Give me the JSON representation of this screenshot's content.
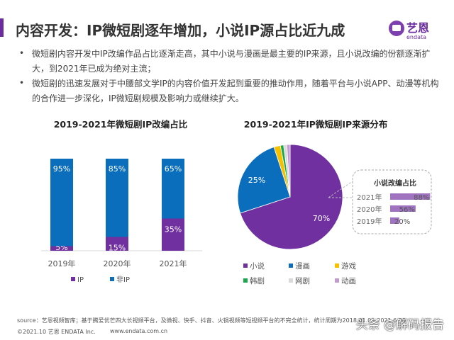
{
  "header": {
    "title": "内容开发：IP微短剧逐年增加，小说IP源占比近九成",
    "logo_text": "艺恩 endata",
    "accent_color": "#6a2c9f"
  },
  "bullets": [
    "微短剧内容开发中IP改编作品占比逐渐走高，其中小说与漫画是最主要的IP来源，且小说改编的份额逐渐扩大，到2021年已成为绝对主流；",
    "微短剧的迅速发展对于中腰部文学IP的内容价值开发起到重要的推动作用，随着平台与小说APP、动漫等机构的合作进一步深化，IP微短剧规模及影响力或继续扩大。"
  ],
  "bullet_mark": "•",
  "chart_data": [
    {
      "type": "bar",
      "stacked": true,
      "title": "2019-2021年微短剧IP改编占比",
      "categories": [
        "2019年",
        "2020年",
        "2021年"
      ],
      "series": [
        {
          "name": "IP",
          "values": [
            5,
            15,
            35
          ],
          "labels": [
            "5%",
            "15%",
            "35%"
          ],
          "color": "#7030a0"
        },
        {
          "name": "非IP",
          "values": [
            95,
            85,
            65
          ],
          "labels": [
            "95%",
            "85%",
            "65%"
          ],
          "color": "#0a6ebd"
        }
      ],
      "ylim": [
        0,
        100
      ],
      "legend": "bottom",
      "grid": false
    },
    {
      "type": "pie",
      "title": "2019-2021年IP微短剧IP来源分布",
      "slices": [
        {
          "name": "小说",
          "value": 70,
          "label": "70%",
          "color": "#7030a0"
        },
        {
          "name": "漫画",
          "value": 25,
          "label": "25%",
          "color": "#0a6ebd"
        },
        {
          "name": "游戏",
          "value": 2,
          "label": "",
          "color": "#f5c000"
        },
        {
          "name": "韩剧",
          "value": 1,
          "label": "",
          "color": "#1aa84a"
        },
        {
          "name": "网剧",
          "value": 1,
          "label": "",
          "color": "#d9d9d9"
        },
        {
          "name": "动画",
          "value": 1,
          "label": "",
          "color": "#c49bd0"
        }
      ],
      "legend": "bottom"
    },
    {
      "type": "bar",
      "orientation": "horizontal",
      "title": "小说改编占比",
      "categories": [
        "2021年",
        "2020年",
        "2019年"
      ],
      "values": [
        88,
        56,
        20
      ],
      "labels": [
        "88%",
        "56%",
        "20%"
      ],
      "color": "#9f73bf",
      "xlim": [
        0,
        100
      ]
    }
  ],
  "footer": {
    "source": "source：艺恩视频智库；基于腾爱优芒四大长视频平台，及微视、快手、抖音、火锅视频等短视频平台的不完全统计，统计周期为2018.01.01-2021.6.30",
    "copyright": "©2021.10 艺恩 ENDATA Inc.",
    "website": "www.endata.com.cn"
  },
  "watermark": "头条 @解码报告"
}
